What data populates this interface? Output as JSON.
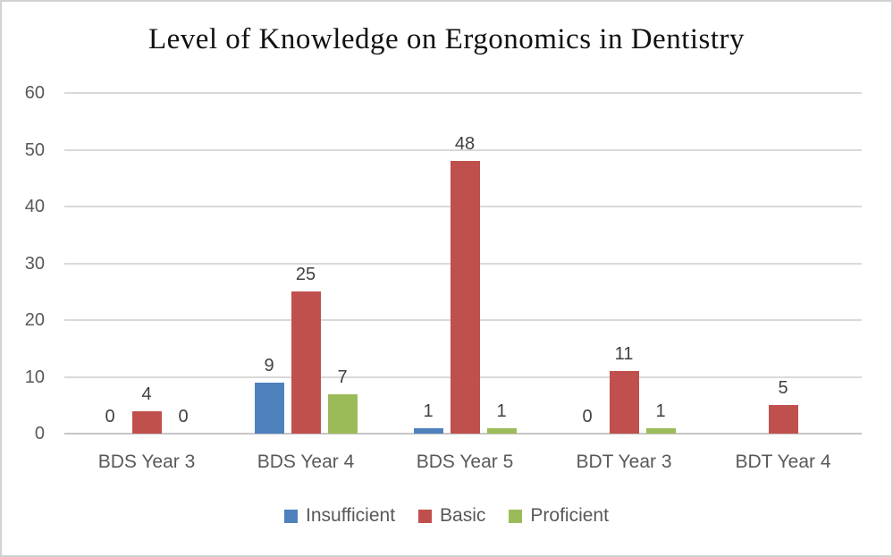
{
  "chart_data": {
    "type": "bar",
    "title": "Level of Knowledge on Ergonomics in Dentistry",
    "categories": [
      "BDS Year 3",
      "BDS Year 4",
      "BDS Year 5",
      "BDT Year 3",
      "BDT Year 4"
    ],
    "series": [
      {
        "name": "Insufficient",
        "color": "#4F81BD",
        "values": [
          0,
          9,
          1,
          0,
          null
        ]
      },
      {
        "name": "Basic",
        "color": "#C0504D",
        "values": [
          4,
          25,
          48,
          11,
          5
        ]
      },
      {
        "name": "Proficient",
        "color": "#9BBB59",
        "values": [
          0,
          7,
          1,
          1,
          null
        ]
      }
    ],
    "xlabel": "",
    "ylabel": "",
    "ylim": [
      0,
      60
    ],
    "yticks": [
      0,
      10,
      20,
      30,
      40,
      50,
      60
    ],
    "grid": "horizontal",
    "legend_position": "bottom",
    "value_labels": "outside-end",
    "colors": {
      "gridline": "#d9d9d9",
      "axis_line": "#c6c6c6",
      "tick_text": "#595959",
      "value_label_text": "#404040",
      "title_text": "#111111",
      "background": "#ffffff",
      "border": "#d2d2d2"
    }
  }
}
